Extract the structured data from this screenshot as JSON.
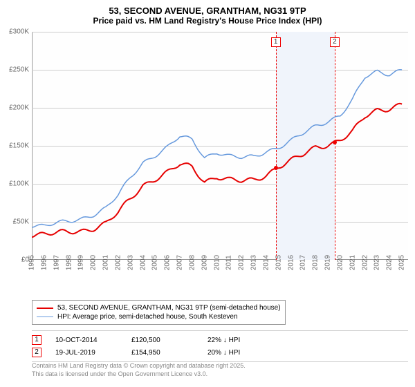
{
  "title": {
    "line1": "53, SECOND AVENUE, GRANTHAM, NG31 9TP",
    "line2": "Price paid vs. HM Land Registry's House Price Index (HPI)"
  },
  "chart": {
    "type": "line",
    "xlim": [
      1995,
      2025.5
    ],
    "ylim": [
      0,
      300000
    ],
    "ytick_step": 50000,
    "y_ticks": [
      "£0",
      "£50K",
      "£100K",
      "£150K",
      "£200K",
      "£250K",
      "£300K"
    ],
    "x_ticks": [
      "1995",
      "1996",
      "1997",
      "1998",
      "1999",
      "2000",
      "2001",
      "2002",
      "2003",
      "2004",
      "2005",
      "2006",
      "2007",
      "2008",
      "2009",
      "2010",
      "2011",
      "2012",
      "2013",
      "2014",
      "2015",
      "2016",
      "2017",
      "2018",
      "2019",
      "2020",
      "2021",
      "2022",
      "2023",
      "2024",
      "2025"
    ],
    "background_color": "#fefefe",
    "grid_color": "#cccccc",
    "shaded_zone": {
      "x_start": 2014.77,
      "x_end": 2019.55,
      "fill": "#f0f4fb"
    },
    "series": [
      {
        "name": "price_paid",
        "color": "#e60000",
        "width": 2,
        "data": [
          [
            1995,
            34000
          ],
          [
            1996,
            34000
          ],
          [
            1997,
            35000
          ],
          [
            1998,
            36000
          ],
          [
            1999,
            38000
          ],
          [
            2000,
            42000
          ],
          [
            2001,
            48000
          ],
          [
            2002,
            62000
          ],
          [
            2003,
            80000
          ],
          [
            2004,
            98000
          ],
          [
            2005,
            107000
          ],
          [
            2006,
            115000
          ],
          [
            2007,
            125000
          ],
          [
            2008,
            122000
          ],
          [
            2009,
            103000
          ],
          [
            2010,
            110000
          ],
          [
            2011,
            105000
          ],
          [
            2012,
            103000
          ],
          [
            2013,
            105000
          ],
          [
            2014,
            112000
          ],
          [
            2014.77,
            120500
          ],
          [
            2015,
            123000
          ],
          [
            2016,
            130000
          ],
          [
            2017,
            138000
          ],
          [
            2018,
            148000
          ],
          [
            2019,
            152000
          ],
          [
            2019.55,
            154950
          ],
          [
            2020,
            158000
          ],
          [
            2021,
            168000
          ],
          [
            2022,
            188000
          ],
          [
            2023,
            197000
          ],
          [
            2024,
            200000
          ],
          [
            2025,
            205000
          ]
        ]
      },
      {
        "name": "hpi",
        "color": "#6699dd",
        "width": 1.5,
        "data": [
          [
            1995,
            46000
          ],
          [
            1996,
            45000
          ],
          [
            1997,
            48000
          ],
          [
            1998,
            50000
          ],
          [
            1999,
            54000
          ],
          [
            2000,
            60000
          ],
          [
            2001,
            68000
          ],
          [
            2002,
            85000
          ],
          [
            2003,
            108000
          ],
          [
            2004,
            128000
          ],
          [
            2005,
            138000
          ],
          [
            2006,
            148000
          ],
          [
            2007,
            162000
          ],
          [
            2008,
            158000
          ],
          [
            2009,
            135000
          ],
          [
            2010,
            142000
          ],
          [
            2011,
            136000
          ],
          [
            2012,
            134000
          ],
          [
            2013,
            136000
          ],
          [
            2014,
            143000
          ],
          [
            2015,
            148000
          ],
          [
            2016,
            156000
          ],
          [
            2017,
            166000
          ],
          [
            2018,
            176000
          ],
          [
            2019,
            183000
          ],
          [
            2020,
            190000
          ],
          [
            2021,
            210000
          ],
          [
            2022,
            240000
          ],
          [
            2023,
            248000
          ],
          [
            2024,
            245000
          ],
          [
            2025,
            250000
          ]
        ]
      }
    ],
    "sale_markers": [
      {
        "label": "1",
        "x": 2014.77,
        "y": 120500
      },
      {
        "label": "2",
        "x": 2019.55,
        "y": 154950
      }
    ]
  },
  "legend": {
    "items": [
      {
        "label": "53, SECOND AVENUE, GRANTHAM, NG31 9TP (semi-detached house)",
        "color": "#e60000",
        "width": 2
      },
      {
        "label": "HPI: Average price, semi-detached house, South Kesteven",
        "color": "#6699dd",
        "width": 1.5
      }
    ]
  },
  "sales": [
    {
      "num": "1",
      "date": "10-OCT-2014",
      "price": "£120,500",
      "diff": "22% ↓ HPI"
    },
    {
      "num": "2",
      "date": "19-JUL-2019",
      "price": "£154,950",
      "diff": "20% ↓ HPI"
    }
  ],
  "attribution": {
    "line1": "Contains HM Land Registry data © Crown copyright and database right 2025.",
    "line2": "This data is licensed under the Open Government Licence v3.0."
  }
}
